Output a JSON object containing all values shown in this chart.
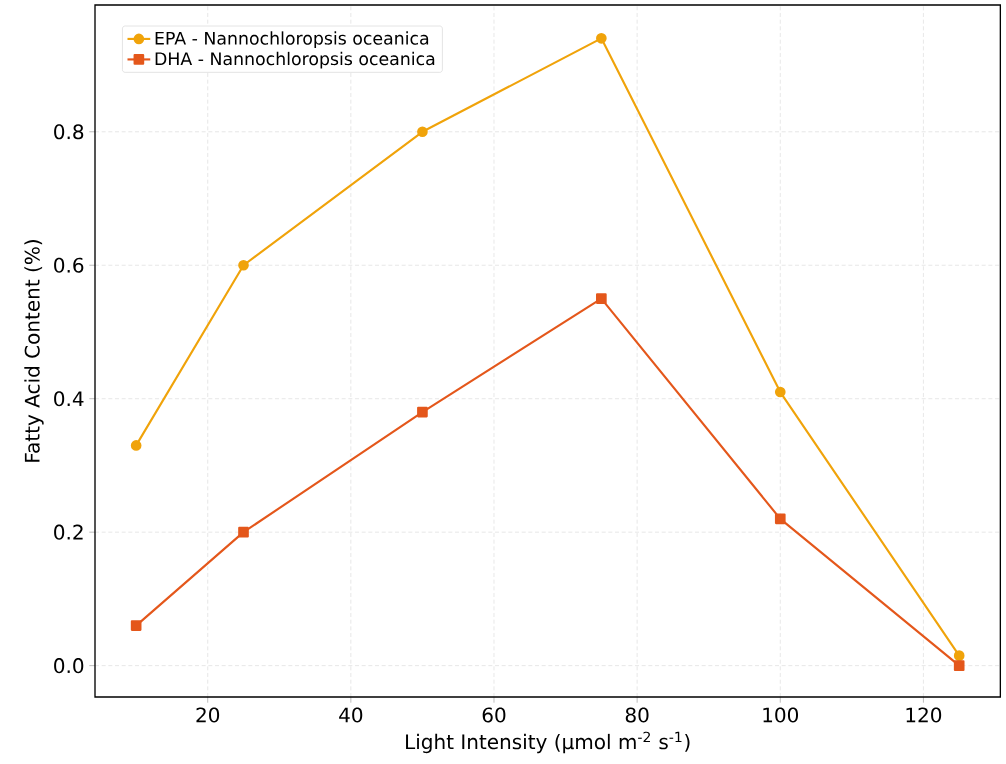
{
  "chart_data": {
    "type": "line",
    "xlabel": "Light Intensity (µmol m$^{-2}$ s$^{-1}$)",
    "ylabel": "Fatty Acid Content (%)",
    "x": [
      10,
      25,
      50,
      75,
      100,
      125
    ],
    "series": [
      {
        "name": "EPA - Nannochloropsis oceanica",
        "color": "#f0a30a",
        "marker": "circle",
        "values": [
          0.33,
          0.6,
          0.8,
          0.94,
          0.41,
          0.015
        ]
      },
      {
        "name": "DHA - Nannochloropsis oceanica",
        "color": "#e4571b",
        "marker": "square",
        "values": [
          0.06,
          0.2,
          0.38,
          0.55,
          0.22,
          0.0
        ]
      }
    ],
    "xlim": [
      4.25,
      130.75
    ],
    "ylim": [
      -0.047,
      0.99
    ],
    "xticks": [
      20,
      40,
      60,
      80,
      100,
      120
    ],
    "yticks": [
      {
        "value": 0,
        "label": "0.0"
      },
      {
        "value": 0.2,
        "label": "0.2"
      },
      {
        "value": 0.4,
        "label": "0.4"
      },
      {
        "value": 0.6,
        "label": "0.6"
      },
      {
        "value": 0.8,
        "label": "0.8"
      }
    ],
    "grid": true,
    "legend": "top left",
    "line_style": "solid"
  }
}
